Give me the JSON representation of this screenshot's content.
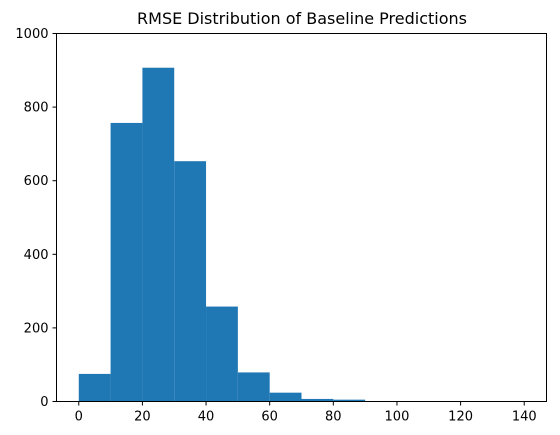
{
  "chart_data": {
    "type": "bar",
    "title": "RMSE Distribution of Baseline Predictions",
    "xlabel": "",
    "ylabel": "",
    "bins": [
      {
        "x0": 0,
        "x1": 10,
        "count": 75
      },
      {
        "x0": 10,
        "x1": 20,
        "count": 757
      },
      {
        "x0": 20,
        "x1": 30,
        "count": 907
      },
      {
        "x0": 30,
        "x1": 40,
        "count": 653
      },
      {
        "x0": 40,
        "x1": 50,
        "count": 258
      },
      {
        "x0": 50,
        "x1": 60,
        "count": 79
      },
      {
        "x0": 60,
        "x1": 70,
        "count": 24
      },
      {
        "x0": 70,
        "x1": 80,
        "count": 7
      },
      {
        "x0": 80,
        "x1": 90,
        "count": 5
      },
      {
        "x0": 90,
        "x1": 100,
        "count": 1
      },
      {
        "x0": 100,
        "x1": 110,
        "count": 1
      },
      {
        "x0": 110,
        "x1": 120,
        "count": 0
      },
      {
        "x0": 120,
        "x1": 130,
        "count": 0
      },
      {
        "x0": 130,
        "x1": 140,
        "count": 1
      }
    ],
    "xlim": [
      -7,
      147
    ],
    "ylim": [
      0,
      1000
    ],
    "xticks": [
      "0",
      "20",
      "40",
      "60",
      "80",
      "100",
      "120",
      "140"
    ],
    "yticks": [
      "0",
      "200",
      "400",
      "600",
      "800",
      "1000"
    ],
    "bar_color": "#1f77b4",
    "grid": false
  }
}
